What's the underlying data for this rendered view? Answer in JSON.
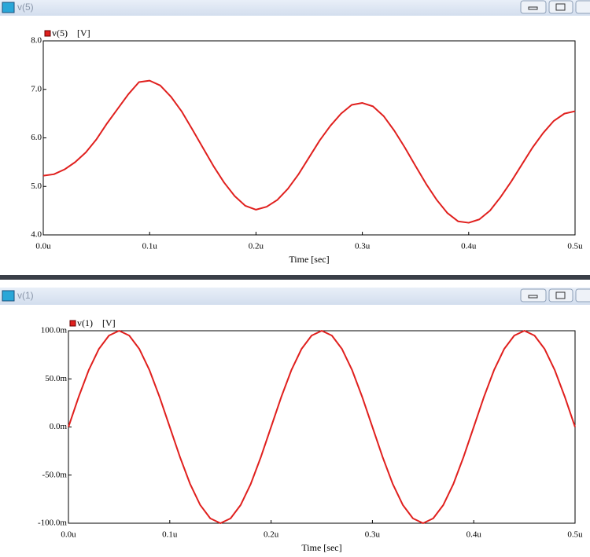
{
  "windows": [
    {
      "title": "v(5)"
    },
    {
      "title": "v(1)"
    }
  ],
  "chart_data": [
    {
      "type": "line",
      "xlabel": "Time [sec]",
      "ylabel": "[V]",
      "grid": false,
      "x": [
        0,
        0.01,
        0.02,
        0.03,
        0.04,
        0.05,
        0.06,
        0.07,
        0.08,
        0.09,
        0.1,
        0.11,
        0.12,
        0.13,
        0.14,
        0.15,
        0.16,
        0.17,
        0.18,
        0.19,
        0.2,
        0.21,
        0.22,
        0.23,
        0.24,
        0.25,
        0.26,
        0.27,
        0.28,
        0.29,
        0.3,
        0.31,
        0.32,
        0.33,
        0.34,
        0.35,
        0.36,
        0.37,
        0.38,
        0.39,
        0.4,
        0.41,
        0.42,
        0.43,
        0.44,
        0.45,
        0.46,
        0.47,
        0.48,
        0.49,
        0.5
      ],
      "series": [
        {
          "name": "v(5)",
          "color": "#e0201e",
          "values": [
            5.22,
            5.25,
            5.35,
            5.5,
            5.7,
            5.97,
            6.3,
            6.6,
            6.9,
            7.15,
            7.18,
            7.08,
            6.85,
            6.55,
            6.18,
            5.8,
            5.42,
            5.08,
            4.8,
            4.6,
            4.52,
            4.58,
            4.72,
            4.95,
            5.25,
            5.6,
            5.95,
            6.25,
            6.5,
            6.68,
            6.72,
            6.65,
            6.45,
            6.15,
            5.8,
            5.42,
            5.05,
            4.72,
            4.45,
            4.28,
            4.25,
            4.32,
            4.5,
            4.78,
            5.1,
            5.45,
            5.8,
            6.1,
            6.35,
            6.5,
            6.55
          ]
        }
      ],
      "xlim": [
        0,
        0.5
      ],
      "xticks": [
        {
          "value": 0,
          "label": "0.0u"
        },
        {
          "value": 0.1,
          "label": "0.1u"
        },
        {
          "value": 0.2,
          "label": "0.2u"
        },
        {
          "value": 0.3,
          "label": "0.3u"
        },
        {
          "value": 0.4,
          "label": "0.4u"
        },
        {
          "value": 0.5,
          "label": "0.5u"
        }
      ],
      "ylim": [
        4,
        8
      ],
      "yticks": [
        {
          "value": 4,
          "label": "4.0"
        },
        {
          "value": 5,
          "label": "5.0"
        },
        {
          "value": 6,
          "label": "6.0"
        },
        {
          "value": 7,
          "label": "7.0"
        },
        {
          "value": 8,
          "label": "8.0"
        }
      ]
    },
    {
      "type": "line",
      "xlabel": "Time [sec]",
      "ylabel": "[V]",
      "grid": false,
      "x": [
        0,
        0.01,
        0.02,
        0.03,
        0.04,
        0.05,
        0.06,
        0.07,
        0.08,
        0.09,
        0.1,
        0.11,
        0.12,
        0.13,
        0.14,
        0.15,
        0.16,
        0.17,
        0.18,
        0.19,
        0.2,
        0.21,
        0.22,
        0.23,
        0.24,
        0.25,
        0.26,
        0.27,
        0.28,
        0.29,
        0.3,
        0.31,
        0.32,
        0.33,
        0.34,
        0.35,
        0.36,
        0.37,
        0.38,
        0.39,
        0.4,
        0.41,
        0.42,
        0.43,
        0.44,
        0.45,
        0.46,
        0.47,
        0.48,
        0.49,
        0.5
      ],
      "series": [
        {
          "name": "v(1)",
          "color": "#e0201e",
          "values": [
            0,
            0.031,
            0.059,
            0.081,
            0.095,
            0.1,
            0.095,
            0.081,
            0.059,
            0.031,
            0,
            -0.031,
            -0.059,
            -0.081,
            -0.095,
            -0.1,
            -0.095,
            -0.081,
            -0.059,
            -0.031,
            0,
            0.031,
            0.059,
            0.081,
            0.095,
            0.1,
            0.095,
            0.081,
            0.059,
            0.031,
            0,
            -0.031,
            -0.059,
            -0.081,
            -0.095,
            -0.1,
            -0.095,
            -0.081,
            -0.059,
            -0.031,
            0,
            0.031,
            0.059,
            0.081,
            0.095,
            0.1,
            0.095,
            0.081,
            0.059,
            0.031,
            0
          ]
        }
      ],
      "xlim": [
        0,
        0.5
      ],
      "xticks": [
        {
          "value": 0,
          "label": "0.0u"
        },
        {
          "value": 0.1,
          "label": "0.1u"
        },
        {
          "value": 0.2,
          "label": "0.2u"
        },
        {
          "value": 0.3,
          "label": "0.3u"
        },
        {
          "value": 0.4,
          "label": "0.4u"
        },
        {
          "value": 0.5,
          "label": "0.5u"
        }
      ],
      "ylim": [
        -0.1,
        0.1
      ],
      "yticks": [
        {
          "value": -0.1,
          "label": "-100.0m"
        },
        {
          "value": -0.05,
          "label": "-50.0m"
        },
        {
          "value": 0,
          "label": "0.0m"
        },
        {
          "value": 0.05,
          "label": "50.0m"
        },
        {
          "value": 0.1,
          "label": "100.0m"
        }
      ]
    }
  ]
}
